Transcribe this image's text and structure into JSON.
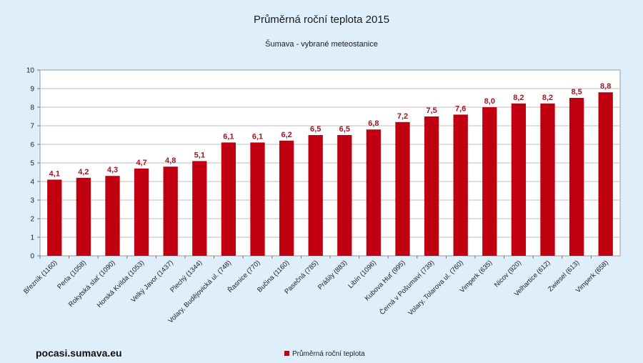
{
  "chart_data": {
    "type": "bar",
    "title": "Průměrná roční teplota 2015",
    "subtitle": "Šumava - vybrané meteostanice",
    "xlabel": "",
    "ylabel": "",
    "ylim": [
      0,
      10
    ],
    "yticks": [
      0,
      1,
      2,
      3,
      4,
      5,
      6,
      7,
      8,
      9,
      10
    ],
    "grid": true,
    "legend_position": "bottom",
    "categories": [
      "Březník (1160)",
      "Perla (1058)",
      "Rokytská slať (1090)",
      "Horská Kvilda (1053)",
      "Velký Javor (1437)",
      "Plechý (1344)",
      "Volary, Budějovická ul. (748)",
      "Řasnice (770)",
      "Bučina (1160)",
      "Pasečná (785)",
      "Prášily (883)",
      "Libín (1096)",
      "Kubova Huť (995)",
      "Černá v Pošumaví (739)",
      "Volary, Tolarova ul. (760)",
      "Vimperk (635)",
      "Nicov (920)",
      "Velhartice (612)",
      "Zwiesel (613)",
      "Vimperk (658)"
    ],
    "series": [
      {
        "name": "Průměrná roční teplota",
        "color": "#c00010",
        "values": [
          4.1,
          4.2,
          4.3,
          4.7,
          4.8,
          5.1,
          6.1,
          6.1,
          6.2,
          6.5,
          6.5,
          6.8,
          7.2,
          7.5,
          7.6,
          8.0,
          8.2,
          8.2,
          8.5,
          8.8
        ],
        "labels": [
          "4,1",
          "4,2",
          "4,3",
          "4,7",
          "4,8",
          "5,1",
          "6,1",
          "6,1",
          "6,2",
          "6,5",
          "6,5",
          "6,8",
          "7,2",
          "7,5",
          "7,6",
          "8,0",
          "8,2",
          "8,2",
          "8,5",
          "8,8"
        ]
      }
    ]
  },
  "footer": {
    "site": "pocasi.sumava.eu"
  },
  "colors": {
    "background": "#dfeefb",
    "plot_background": "#ffffff",
    "grid": "#bdbdbd",
    "bar": "#c00010",
    "label": "#a8141f"
  }
}
